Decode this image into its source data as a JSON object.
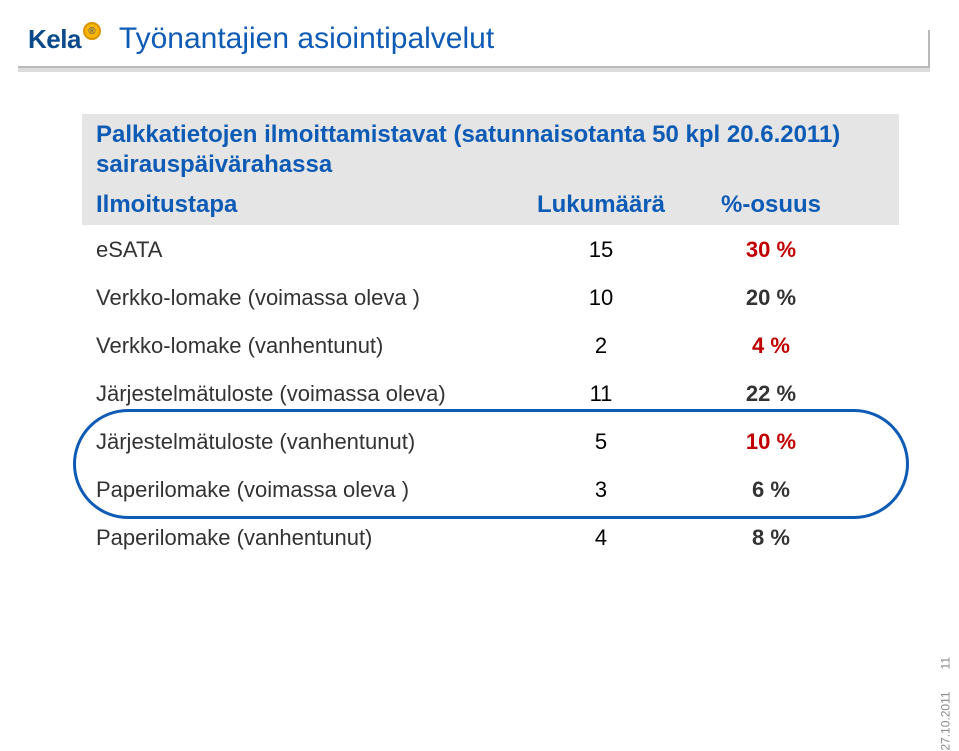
{
  "logo_text": "Kela",
  "logo_badge_text": "®",
  "page_title": "Työnantajien asiointipalvelut",
  "table": {
    "title_line1": "Palkkatietojen ilmoittamistavat (satunnaisotanta 50 kpl 20.6.2011)",
    "title_line2": "sairauspäivärahassa",
    "header_col1": "Ilmoitustapa",
    "header_col2": "Lukumäärä",
    "header_col3": "%-osuus",
    "rows": [
      {
        "label": "eSATA",
        "count": "15",
        "pct": "30 %",
        "pct_color": "#c00000"
      },
      {
        "label": "Verkko-lomake (voimassa oleva )",
        "count": "10",
        "pct": "20 %",
        "pct_color": "#333333"
      },
      {
        "label": "Verkko-lomake (vanhentunut)",
        "count": "2",
        "pct": "4 %",
        "pct_color": "#c00000"
      },
      {
        "label": "Järjestelmätuloste (voimassa oleva)",
        "count": "11",
        "pct": "22 %",
        "pct_color": "#333333"
      },
      {
        "label": "Järjestelmätuloste (vanhentunut)",
        "count": "5",
        "pct": "10 %",
        "pct_color": "#c00000"
      },
      {
        "label": "Paperilomake (voimassa oleva )",
        "count": "3",
        "pct": "6 %",
        "pct_color": "#333333"
      },
      {
        "label": "Paperilomake (vanhentunut)",
        "count": "4",
        "pct": "8 %",
        "pct_color": "#333333"
      }
    ]
  },
  "footer": {
    "page_num": "11",
    "date": "27.10.2011"
  },
  "colors": {
    "heading_blue": "#0e5bb5",
    "grey_bg": "#e5e5e5",
    "sep_grey": "#b9b9b9"
  }
}
